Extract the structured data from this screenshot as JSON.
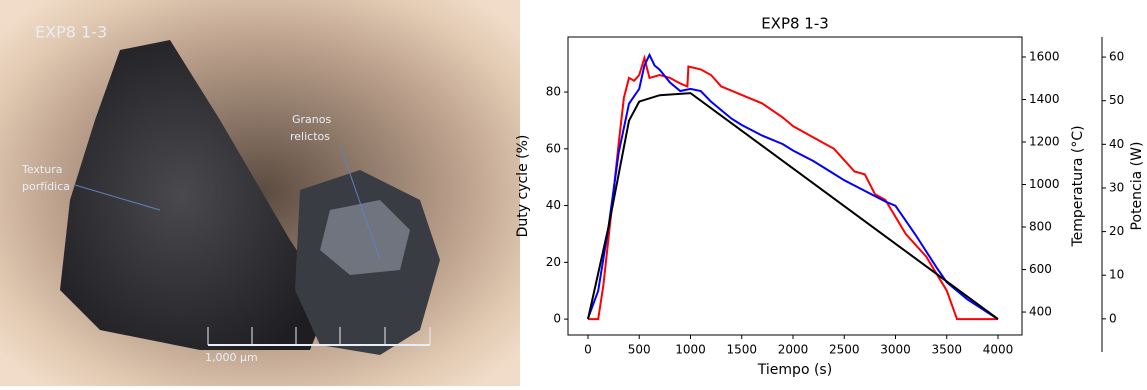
{
  "photo": {
    "label": "EXP8 1-3",
    "annotations": [
      {
        "lines": [
          "Textura",
          "porfídica"
        ]
      },
      {
        "lines": [
          "Granos",
          "relictos"
        ]
      }
    ],
    "scale_label": "1,000 μm"
  },
  "chart_data": {
    "type": "line",
    "title": "EXP8 1-3",
    "xlabel": "Tiempo (s)",
    "ylabel": "Duty cycle (%)",
    "y2label": "Temperatura (°C)",
    "y3label": "Potencia (W)",
    "xlim": [
      -195,
      4234
    ],
    "xticks": [
      0,
      500,
      1000,
      1500,
      2000,
      2500,
      3000,
      3500,
      4000
    ],
    "ylim": [
      -5.6,
      99.4
    ],
    "yticks": [
      0,
      20,
      40,
      60,
      80
    ],
    "y2lim": [
      292,
      1694
    ],
    "y2ticks": [
      400,
      600,
      800,
      1000,
      1200,
      1400,
      1600
    ],
    "y3lim": [
      -3.7,
      64.6
    ],
    "y3ticks": [
      0,
      10,
      20,
      30,
      40,
      50,
      60
    ],
    "series": [
      {
        "color": "#ff0000",
        "axis": "y",
        "x": [
          0,
          100,
          150,
          250,
          300,
          350,
          400,
          450,
          500,
          550,
          600,
          700,
          800,
          900,
          970,
          980,
          1100,
          1200,
          1300,
          1500,
          1700,
          1900,
          2000,
          2200,
          2400,
          2500,
          2600,
          2700,
          2800,
          2900,
          3000,
          3100,
          3200,
          3300,
          3400,
          3500,
          3600,
          4000
        ],
        "values": [
          0,
          0,
          12,
          45,
          62,
          78,
          85,
          84,
          86,
          92,
          85,
          86,
          85,
          83,
          82,
          89,
          88,
          86,
          82,
          79,
          76,
          71,
          68,
          64,
          60,
          56,
          52,
          51,
          44,
          42,
          36,
          30,
          26,
          22,
          16,
          10,
          0,
          0
        ]
      },
      {
        "color": "#0000ff",
        "axis": "y2",
        "x": [
          0,
          100,
          200,
          300,
          400,
          500,
          550,
          600,
          650,
          700,
          800,
          900,
          1000,
          1100,
          1200,
          1300,
          1400,
          1500,
          1700,
          1900,
          2000,
          2200,
          2400,
          2500,
          2700,
          2900,
          3000,
          3200,
          3400,
          3500,
          3700,
          4000
        ],
        "values": [
          370,
          500,
          800,
          1150,
          1380,
          1450,
          1560,
          1610,
          1560,
          1540,
          1480,
          1440,
          1450,
          1440,
          1390,
          1350,
          1310,
          1280,
          1230,
          1190,
          1160,
          1110,
          1050,
          1020,
          970,
          920,
          900,
          760,
          610,
          540,
          460,
          367
        ]
      },
      {
        "color": "#000000",
        "axis": "y2",
        "x": [
          0,
          200,
          400,
          500,
          700,
          1000,
          4000
        ],
        "values": [
          367,
          800,
          1300,
          1390,
          1420,
          1430,
          367
        ]
      }
    ]
  }
}
